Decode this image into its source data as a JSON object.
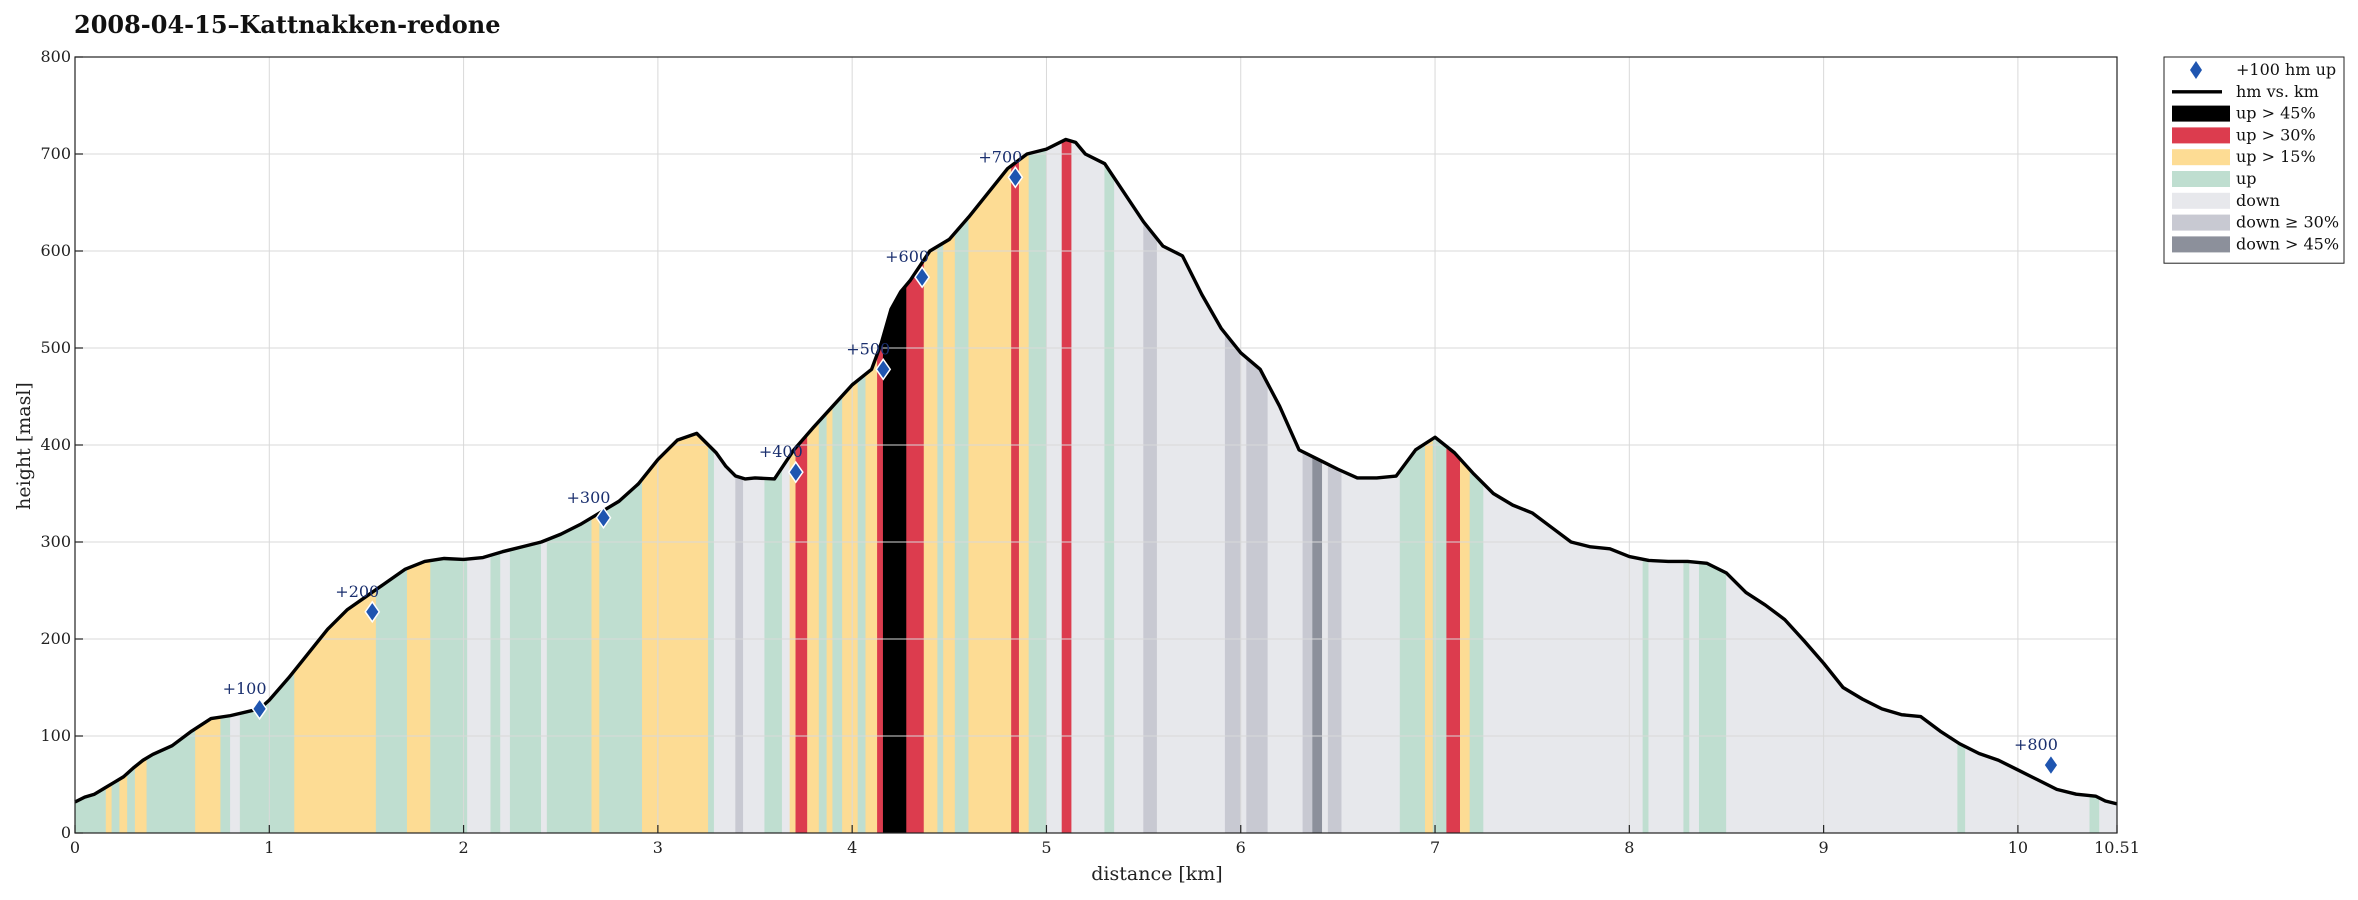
{
  "chart_data": {
    "type": "area",
    "title": "2008-04-15–Kattnakken-redone",
    "xlabel": "distance [km]",
    "ylabel": "height [masl]",
    "xlim": [
      0,
      10.51
    ],
    "ylim": [
      0,
      800
    ],
    "xticks": [
      0,
      1,
      2,
      3,
      4,
      5,
      6,
      7,
      8,
      9,
      10,
      10.51
    ],
    "xtick_labels": [
      "0",
      "1",
      "2",
      "3",
      "4",
      "5",
      "6",
      "7",
      "8",
      "9",
      "10",
      "10.51"
    ],
    "yticks": [
      0,
      100,
      200,
      300,
      400,
      500,
      600,
      700,
      800
    ],
    "grid": true,
    "legend_position": "outside-right-top",
    "legend": [
      {
        "key": "marker",
        "label": "+100 hm up",
        "color": "#1f55b0"
      },
      {
        "key": "line",
        "label": "hm vs. km",
        "color": "#000000"
      },
      {
        "key": "up45",
        "label": "up > 45%",
        "color": "#000000"
      },
      {
        "key": "up30",
        "label": "up > 30%",
        "color": "#dc3c4e"
      },
      {
        "key": "up15",
        "label": "up > 15%",
        "color": "#fddc94"
      },
      {
        "key": "up",
        "label": "up",
        "color": "#bfded0"
      },
      {
        "key": "down",
        "label": "down",
        "color": "#e7e8ec"
      },
      {
        "key": "down30",
        "label": "down ≥ 30%",
        "color": "#c8c9d2"
      },
      {
        "key": "down45",
        "label": "down > 45%",
        "color": "#8c909b"
      }
    ],
    "series": [
      {
        "name": "hm vs. km",
        "x": [
          0,
          0.05,
          0.1,
          0.15,
          0.2,
          0.25,
          0.3,
          0.35,
          0.4,
          0.5,
          0.6,
          0.7,
          0.8,
          0.95,
          1.0,
          1.1,
          1.2,
          1.3,
          1.4,
          1.5,
          1.6,
          1.7,
          1.8,
          1.9,
          2.0,
          2.1,
          2.2,
          2.3,
          2.4,
          2.5,
          2.6,
          2.7,
          2.8,
          2.9,
          3.0,
          3.1,
          3.2,
          3.3,
          3.35,
          3.4,
          3.45,
          3.5,
          3.6,
          3.7,
          3.8,
          3.9,
          4.0,
          4.1,
          4.15,
          4.2,
          4.25,
          4.3,
          4.4,
          4.5,
          4.6,
          4.7,
          4.8,
          4.9,
          5.0,
          5.1,
          5.15,
          5.2,
          5.3,
          5.4,
          5.5,
          5.6,
          5.7,
          5.8,
          5.9,
          6.0,
          6.1,
          6.2,
          6.3,
          6.4,
          6.5,
          6.6,
          6.7,
          6.8,
          6.9,
          7.0,
          7.1,
          7.2,
          7.3,
          7.4,
          7.5,
          7.6,
          7.7,
          7.8,
          7.9,
          8.0,
          8.1,
          8.2,
          8.3,
          8.4,
          8.5,
          8.6,
          8.7,
          8.8,
          8.9,
          9.0,
          9.1,
          9.2,
          9.3,
          9.4,
          9.5,
          9.6,
          9.7,
          9.8,
          9.9,
          10.0,
          10.1,
          10.2,
          10.3,
          10.4,
          10.45,
          10.51
        ],
        "y": [
          32,
          37,
          40,
          46,
          52,
          58,
          67,
          75,
          81,
          90,
          105,
          118,
          121,
          128,
          137,
          160,
          185,
          210,
          230,
          244,
          258,
          272,
          280,
          283,
          282,
          284,
          290,
          295,
          300,
          308,
          318,
          330,
          342,
          360,
          385,
          405,
          412,
          392,
          378,
          368,
          365,
          366,
          365,
          395,
          418,
          440,
          462,
          478,
          505,
          540,
          558,
          570,
          600,
          612,
          635,
          660,
          685,
          700,
          705,
          715,
          712,
          700,
          690,
          660,
          630,
          605,
          595,
          555,
          520,
          495,
          478,
          440,
          395,
          385,
          375,
          366,
          366,
          368,
          395,
          408,
          392,
          370,
          350,
          338,
          330,
          315,
          300,
          295,
          293,
          285,
          281,
          280,
          280,
          278,
          268,
          248,
          235,
          220,
          198,
          175,
          150,
          138,
          128,
          122,
          120,
          105,
          92,
          82,
          75,
          65,
          55,
          45,
          40,
          38,
          33,
          30
        ]
      }
    ],
    "markers": [
      {
        "label": "+100",
        "x": 0.95,
        "y": 128
      },
      {
        "label": "+200",
        "x": 1.53,
        "y": 228
      },
      {
        "label": "+300",
        "x": 2.72,
        "y": 325
      },
      {
        "label": "+400",
        "x": 3.71,
        "y": 372
      },
      {
        "label": "+500",
        "x": 4.16,
        "y": 478
      },
      {
        "label": "+600",
        "x": 4.36,
        "y": 573
      },
      {
        "label": "+700",
        "x": 4.84,
        "y": 676
      },
      {
        "label": "+800",
        "x": 10.17,
        "y": 70
      }
    ],
    "segments": [
      {
        "x0": 0.0,
        "x1": 0.16,
        "cls": "up"
      },
      {
        "x0": 0.16,
        "x1": 0.19,
        "cls": "up15"
      },
      {
        "x0": 0.19,
        "x1": 0.23,
        "cls": "up"
      },
      {
        "x0": 0.23,
        "x1": 0.27,
        "cls": "up15"
      },
      {
        "x0": 0.27,
        "x1": 0.31,
        "cls": "up"
      },
      {
        "x0": 0.31,
        "x1": 0.37,
        "cls": "up15"
      },
      {
        "x0": 0.37,
        "x1": 0.62,
        "cls": "up"
      },
      {
        "x0": 0.62,
        "x1": 0.75,
        "cls": "up15"
      },
      {
        "x0": 0.75,
        "x1": 0.8,
        "cls": "up"
      },
      {
        "x0": 0.8,
        "x1": 0.85,
        "cls": "down"
      },
      {
        "x0": 0.85,
        "x1": 1.13,
        "cls": "up"
      },
      {
        "x0": 1.13,
        "x1": 1.55,
        "cls": "up15"
      },
      {
        "x0": 1.55,
        "x1": 1.71,
        "cls": "up"
      },
      {
        "x0": 1.71,
        "x1": 1.83,
        "cls": "up15"
      },
      {
        "x0": 1.83,
        "x1": 2.02,
        "cls": "up"
      },
      {
        "x0": 2.02,
        "x1": 2.14,
        "cls": "down"
      },
      {
        "x0": 2.14,
        "x1": 2.19,
        "cls": "up"
      },
      {
        "x0": 2.19,
        "x1": 2.24,
        "cls": "down"
      },
      {
        "x0": 2.24,
        "x1": 2.4,
        "cls": "up"
      },
      {
        "x0": 2.4,
        "x1": 2.43,
        "cls": "down"
      },
      {
        "x0": 2.43,
        "x1": 2.66,
        "cls": "up"
      },
      {
        "x0": 2.66,
        "x1": 2.7,
        "cls": "up15"
      },
      {
        "x0": 2.7,
        "x1": 2.92,
        "cls": "up"
      },
      {
        "x0": 2.92,
        "x1": 3.26,
        "cls": "up15"
      },
      {
        "x0": 3.26,
        "x1": 3.29,
        "cls": "up"
      },
      {
        "x0": 3.29,
        "x1": 3.4,
        "cls": "down"
      },
      {
        "x0": 3.4,
        "x1": 3.44,
        "cls": "down30"
      },
      {
        "x0": 3.44,
        "x1": 3.55,
        "cls": "down"
      },
      {
        "x0": 3.55,
        "x1": 3.64,
        "cls": "up"
      },
      {
        "x0": 3.64,
        "x1": 3.68,
        "cls": "down"
      },
      {
        "x0": 3.68,
        "x1": 3.71,
        "cls": "up15"
      },
      {
        "x0": 3.71,
        "x1": 3.77,
        "cls": "up30"
      },
      {
        "x0": 3.77,
        "x1": 3.83,
        "cls": "up15"
      },
      {
        "x0": 3.83,
        "x1": 3.87,
        "cls": "up"
      },
      {
        "x0": 3.87,
        "x1": 3.9,
        "cls": "up15"
      },
      {
        "x0": 3.9,
        "x1": 3.95,
        "cls": "up"
      },
      {
        "x0": 3.95,
        "x1": 4.03,
        "cls": "up15"
      },
      {
        "x0": 4.03,
        "x1": 4.07,
        "cls": "up"
      },
      {
        "x0": 4.07,
        "x1": 4.13,
        "cls": "up15"
      },
      {
        "x0": 4.13,
        "x1": 4.16,
        "cls": "up30"
      },
      {
        "x0": 4.16,
        "x1": 4.28,
        "cls": "up45"
      },
      {
        "x0": 4.28,
        "x1": 4.37,
        "cls": "up30"
      },
      {
        "x0": 4.37,
        "x1": 4.44,
        "cls": "up15"
      },
      {
        "x0": 4.44,
        "x1": 4.47,
        "cls": "up"
      },
      {
        "x0": 4.47,
        "x1": 4.53,
        "cls": "up15"
      },
      {
        "x0": 4.53,
        "x1": 4.6,
        "cls": "up"
      },
      {
        "x0": 4.6,
        "x1": 4.82,
        "cls": "up15"
      },
      {
        "x0": 4.82,
        "x1": 4.86,
        "cls": "up30"
      },
      {
        "x0": 4.86,
        "x1": 4.91,
        "cls": "up15"
      },
      {
        "x0": 4.91,
        "x1": 5.0,
        "cls": "up"
      },
      {
        "x0": 5.0,
        "x1": 5.08,
        "cls": "down"
      },
      {
        "x0": 5.08,
        "x1": 5.13,
        "cls": "up30"
      },
      {
        "x0": 5.13,
        "x1": 5.3,
        "cls": "down"
      },
      {
        "x0": 5.3,
        "x1": 5.35,
        "cls": "up"
      },
      {
        "x0": 5.35,
        "x1": 5.5,
        "cls": "down"
      },
      {
        "x0": 5.5,
        "x1": 5.57,
        "cls": "down30"
      },
      {
        "x0": 5.57,
        "x1": 5.92,
        "cls": "down"
      },
      {
        "x0": 5.92,
        "x1": 6.0,
        "cls": "down30"
      },
      {
        "x0": 6.0,
        "x1": 6.03,
        "cls": "down"
      },
      {
        "x0": 6.03,
        "x1": 6.14,
        "cls": "down30"
      },
      {
        "x0": 6.14,
        "x1": 6.32,
        "cls": "down"
      },
      {
        "x0": 6.32,
        "x1": 6.37,
        "cls": "down30"
      },
      {
        "x0": 6.37,
        "x1": 6.42,
        "cls": "down45"
      },
      {
        "x0": 6.42,
        "x1": 6.45,
        "cls": "down"
      },
      {
        "x0": 6.45,
        "x1": 6.52,
        "cls": "down30"
      },
      {
        "x0": 6.52,
        "x1": 6.82,
        "cls": "down"
      },
      {
        "x0": 6.82,
        "x1": 6.95,
        "cls": "up"
      },
      {
        "x0": 6.95,
        "x1": 6.99,
        "cls": "up15"
      },
      {
        "x0": 6.99,
        "x1": 7.06,
        "cls": "up"
      },
      {
        "x0": 7.06,
        "x1": 7.13,
        "cls": "up30"
      },
      {
        "x0": 7.13,
        "x1": 7.18,
        "cls": "up15"
      },
      {
        "x0": 7.18,
        "x1": 7.25,
        "cls": "up"
      },
      {
        "x0": 7.25,
        "x1": 8.07,
        "cls": "down"
      },
      {
        "x0": 8.07,
        "x1": 8.1,
        "cls": "up"
      },
      {
        "x0": 8.1,
        "x1": 8.28,
        "cls": "down"
      },
      {
        "x0": 8.28,
        "x1": 8.31,
        "cls": "up"
      },
      {
        "x0": 8.31,
        "x1": 8.36,
        "cls": "down"
      },
      {
        "x0": 8.36,
        "x1": 8.5,
        "cls": "up"
      },
      {
        "x0": 8.5,
        "x1": 9.69,
        "cls": "down"
      },
      {
        "x0": 9.69,
        "x1": 9.73,
        "cls": "up"
      },
      {
        "x0": 9.73,
        "x1": 10.37,
        "cls": "down"
      },
      {
        "x0": 10.37,
        "x1": 10.42,
        "cls": "up"
      },
      {
        "x0": 10.42,
        "x1": 10.51,
        "cls": "down"
      }
    ]
  }
}
